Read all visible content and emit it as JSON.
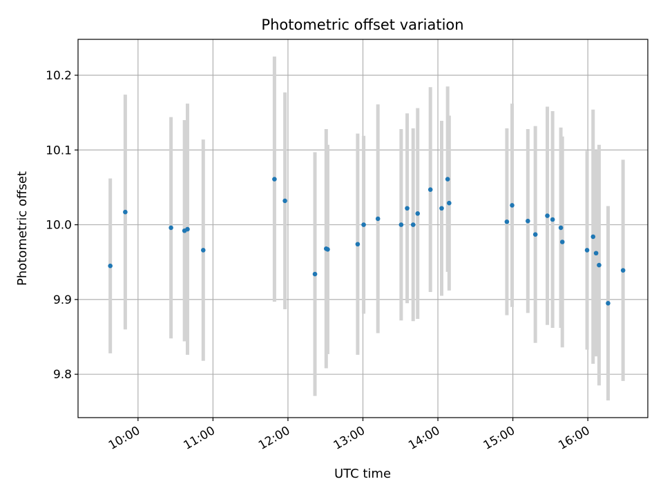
{
  "chart_data": {
    "type": "scatter",
    "title": "Photometric offset variation",
    "xlabel": "UTC time",
    "ylabel": "Photometric offset",
    "xlim": [
      9.2,
      16.8
    ],
    "ylim": [
      9.742,
      10.248
    ],
    "grid": true,
    "x_ticks": [
      {
        "value": 10,
        "label": "10:00"
      },
      {
        "value": 11,
        "label": "11:00"
      },
      {
        "value": 12,
        "label": "12:00"
      },
      {
        "value": 13,
        "label": "13:00"
      },
      {
        "value": 14,
        "label": "14:00"
      },
      {
        "value": 15,
        "label": "15:00"
      },
      {
        "value": 16,
        "label": "16:00"
      }
    ],
    "y_ticks": [
      {
        "value": 9.8,
        "label": "9.8"
      },
      {
        "value": 9.9,
        "label": "9.9"
      },
      {
        "value": 10.0,
        "label": "10.0"
      },
      {
        "value": 10.1,
        "label": "10.1"
      },
      {
        "value": 10.2,
        "label": "10.2"
      }
    ],
    "x_unit": "hours UTC",
    "point_color": "#1f77b4",
    "errorbar_color": "#d3d3d3",
    "points": [
      {
        "x": 9.63,
        "y": 9.945,
        "yerr": 0.117
      },
      {
        "x": 9.83,
        "y": 10.017,
        "yerr": 0.157
      },
      {
        "x": 10.44,
        "y": 9.996,
        "yerr": 0.148
      },
      {
        "x": 10.62,
        "y": 9.992,
        "yerr": 0.148
      },
      {
        "x": 10.66,
        "y": 9.994,
        "yerr": 0.168
      },
      {
        "x": 10.87,
        "y": 9.966,
        "yerr": 0.148
      },
      {
        "x": 11.82,
        "y": 10.061,
        "yerr": 0.164
      },
      {
        "x": 11.96,
        "y": 10.032,
        "yerr": 0.145
      },
      {
        "x": 12.36,
        "y": 9.934,
        "yerr": 0.163
      },
      {
        "x": 12.51,
        "y": 9.968,
        "yerr": 0.16
      },
      {
        "x": 12.53,
        "y": 9.967,
        "yerr": 0.14
      },
      {
        "x": 12.93,
        "y": 9.974,
        "yerr": 0.148
      },
      {
        "x": 13.01,
        "y": 10.0,
        "yerr": 0.119
      },
      {
        "x": 13.2,
        "y": 10.008,
        "yerr": 0.153
      },
      {
        "x": 13.51,
        "y": 10.0,
        "yerr": 0.128
      },
      {
        "x": 13.59,
        "y": 10.022,
        "yerr": 0.127
      },
      {
        "x": 13.67,
        "y": 10.0,
        "yerr": 0.129
      },
      {
        "x": 13.73,
        "y": 10.015,
        "yerr": 0.141
      },
      {
        "x": 13.9,
        "y": 10.047,
        "yerr": 0.137
      },
      {
        "x": 14.05,
        "y": 10.022,
        "yerr": 0.117
      },
      {
        "x": 14.13,
        "y": 10.061,
        "yerr": 0.124
      },
      {
        "x": 14.15,
        "y": 10.029,
        "yerr": 0.117
      },
      {
        "x": 14.92,
        "y": 10.004,
        "yerr": 0.125
      },
      {
        "x": 14.99,
        "y": 10.026,
        "yerr": 0.136
      },
      {
        "x": 15.2,
        "y": 10.005,
        "yerr": 0.123
      },
      {
        "x": 15.3,
        "y": 9.987,
        "yerr": 0.145
      },
      {
        "x": 15.46,
        "y": 10.012,
        "yerr": 0.146
      },
      {
        "x": 15.53,
        "y": 10.007,
        "yerr": 0.145
      },
      {
        "x": 15.64,
        "y": 9.996,
        "yerr": 0.134
      },
      {
        "x": 15.66,
        "y": 9.977,
        "yerr": 0.141
      },
      {
        "x": 15.99,
        "y": 9.966,
        "yerr": 0.133
      },
      {
        "x": 16.07,
        "y": 9.984,
        "yerr": 0.17
      },
      {
        "x": 16.11,
        "y": 9.962,
        "yerr": 0.138
      },
      {
        "x": 16.15,
        "y": 9.946,
        "yerr": 0.161
      },
      {
        "x": 16.27,
        "y": 9.895,
        "yerr": 0.13
      },
      {
        "x": 16.47,
        "y": 9.939,
        "yerr": 0.148
      }
    ]
  }
}
